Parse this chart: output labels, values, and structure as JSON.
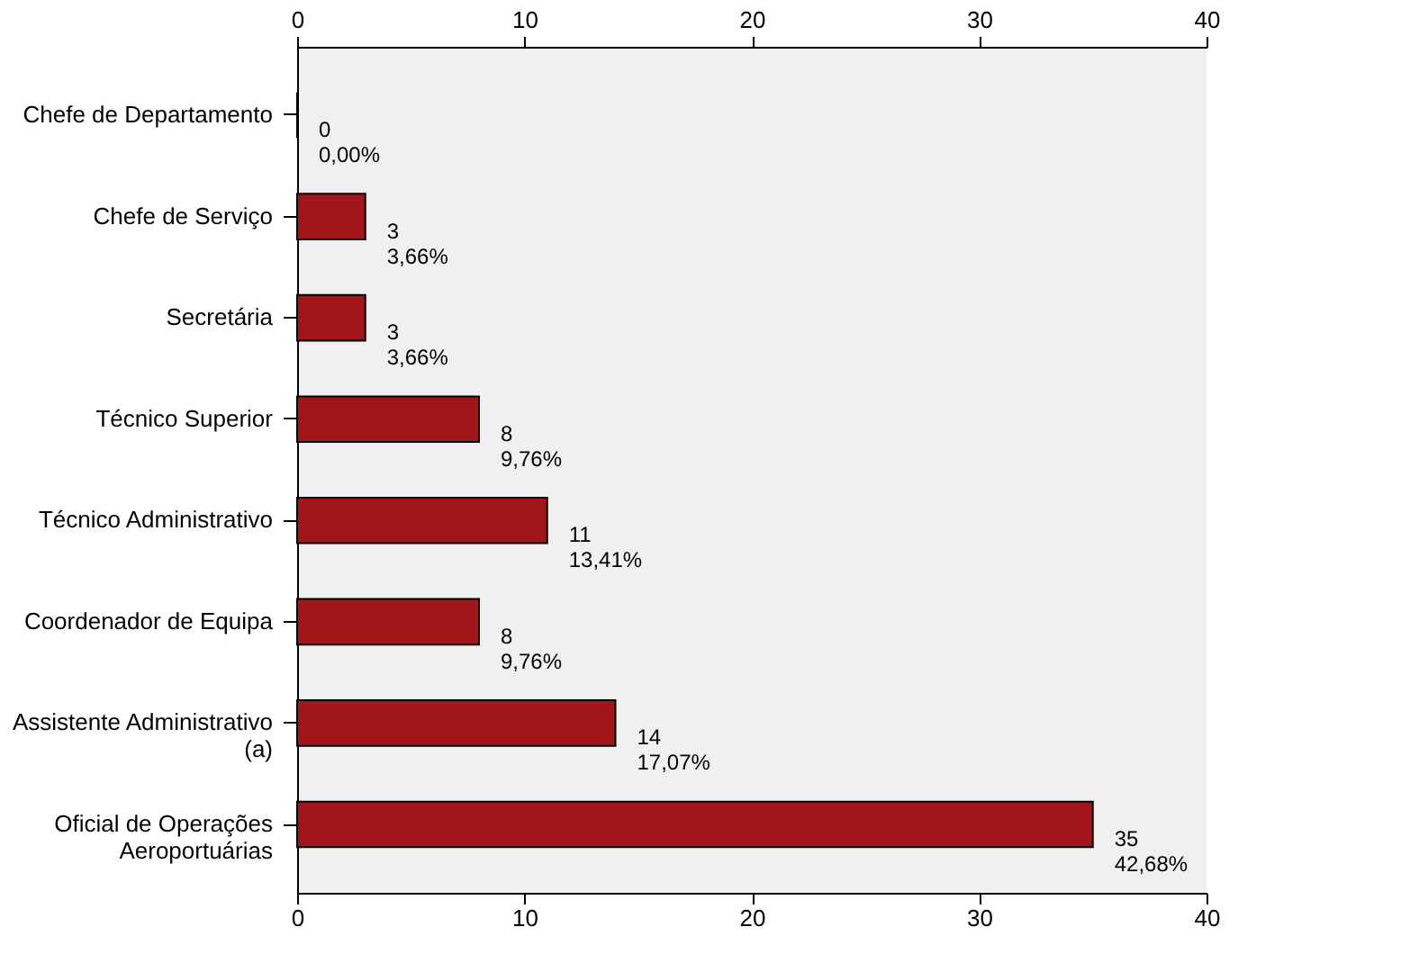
{
  "chart_data": {
    "type": "bar",
    "orientation": "horizontal",
    "categories": [
      "Chefe de Departamento",
      "Chefe de Serviço",
      "Secretária",
      "Técnico Superior",
      "Técnico Administrativo",
      "Coordenador de Equipa",
      "Assistente Administrativo\n(a)",
      "Oficial de Operações\nAeroportuárias"
    ],
    "values": [
      0,
      3,
      3,
      8,
      11,
      8,
      14,
      35
    ],
    "value_labels": [
      "0\n0,00%",
      "3\n3,66%",
      "3\n3,66%",
      "8\n9,76%",
      "11\n13,41%",
      "8\n9,76%",
      "14\n17,07%",
      "35\n42,68%"
    ],
    "color": "#a0161b",
    "xlim": [
      0,
      40
    ],
    "xticks": [
      0,
      10,
      20,
      30,
      40
    ],
    "x2lim": [
      0,
      40
    ],
    "x2ticks": [
      0,
      10,
      20,
      30,
      40
    ],
    "grid": false
  }
}
